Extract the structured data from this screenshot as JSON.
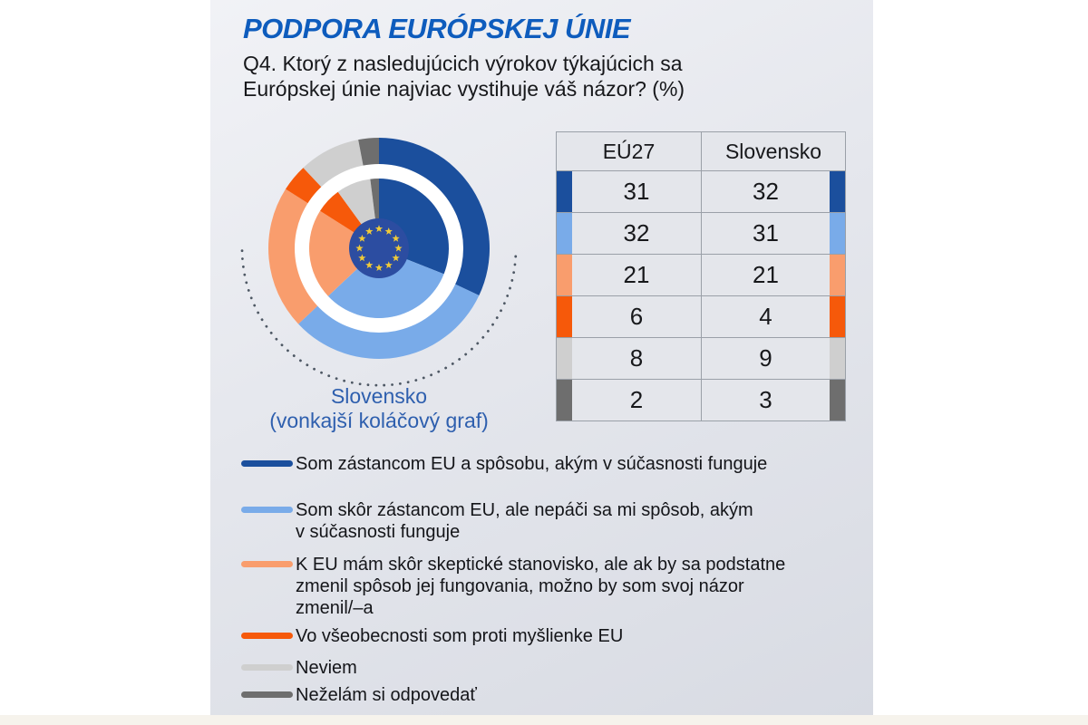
{
  "header": {
    "title": "PODPORA EURÓPSKEJ ÚNIE",
    "title_color": "#0e5cbd",
    "subtitle_lines": [
      "Q4. Ktorý z nasledujúcich výrokov týkajúcich sa",
      "Európskej únie najviac vystihuje váš názor? (%)"
    ]
  },
  "chart_data": {
    "type": "pie",
    "variant": "nested-double-donut",
    "title": "PODPORA EURÓPSKEJ ÚNIE",
    "question": "Q4. Ktorý z nasledujúcich výrokov týkajúcich sa Európskej únie najviac vystihuje váš názor? (%)",
    "categories": [
      "Som zástancom EU a spôsobu, akým v súčasnosti funguje",
      "Som skôr zástancom EU, ale nepáči sa mi spôsob, akým v súčasnosti funguje",
      "K EU mám skôr skeptické stanovisko, ale ak by sa podstatne zmenil spôsob jej fungovania, možno by som svoj názor zmenil/–a",
      "Vo všeobecnosti som proti myšlienke EU",
      "Neviem",
      "Neželám si odpovedať"
    ],
    "series": [
      {
        "name": "EÚ27",
        "position": "inner-ring",
        "values": [
          31,
          32,
          21,
          6,
          8,
          2
        ]
      },
      {
        "name": "Slovensko",
        "position": "outer-ring",
        "values": [
          32,
          31,
          21,
          4,
          9,
          3
        ]
      }
    ],
    "colors": [
      "#1b4f9d",
      "#79abe9",
      "#f99d6d",
      "#f6590a",
      "#cfcfcf",
      "#6e6e6e"
    ],
    "start_angle": "12-oclock",
    "direction": "clockwise",
    "center_icon": "eu-flag",
    "flag_blue": "#2c4da1",
    "star_yellow": "#f0cb38",
    "dotted_arc_color": "#4e5864",
    "outer_ring_label": "Slovensko",
    "outer_ring_note": "(vonkajší koláčový graf)",
    "label_color": "#2e5fae"
  },
  "table": {
    "headers": [
      "EÚ27",
      "Slovensko"
    ],
    "rows": [
      [
        "31",
        "32"
      ],
      [
        "32",
        "31"
      ],
      [
        "21",
        "21"
      ],
      [
        "6",
        "4"
      ],
      [
        "8",
        "9"
      ],
      [
        "2",
        "3"
      ]
    ]
  },
  "legend": {
    "items": [
      "Som zástancom EU a spôsobu, akým v súčasnosti funguje",
      "Som skôr zástancom EU, ale nepáči sa mi spôsob, akým\nv súčasnosti funguje",
      "K EU mám skôr skeptické stanovisko, ale ak by sa podstatne\nzmenil spôsob jej fungovania, možno by som svoj názor\nzmenil/–a",
      "Vo všeobecnosti som proti myšlienke EU",
      "Neviem",
      "Neželám si odpovedať"
    ]
  }
}
